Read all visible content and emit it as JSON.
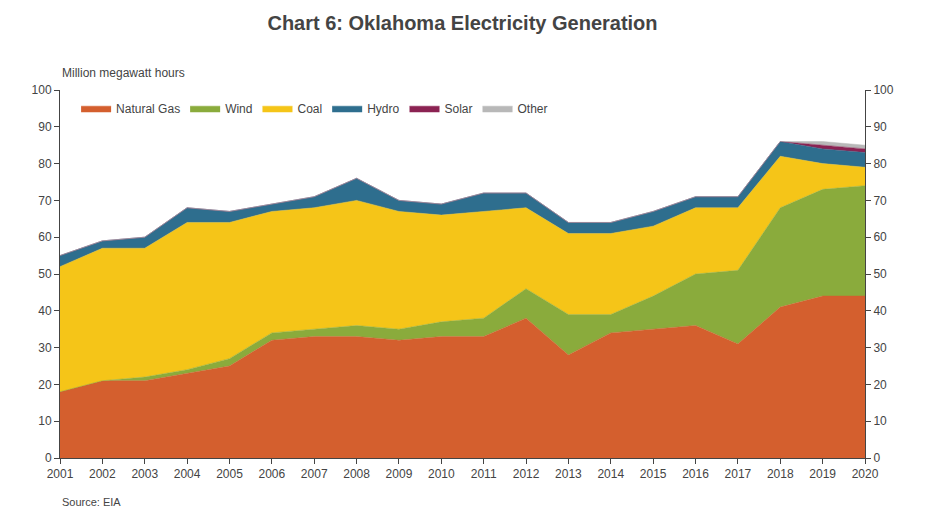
{
  "chart_data": {
    "type": "area",
    "stacked": true,
    "title": "Chart 6: Oklahoma Electricity Generation",
    "ylabel": "Million megawatt hours",
    "annotations": [
      "Source: EIA"
    ],
    "x": [
      2001,
      2002,
      2003,
      2004,
      2005,
      2006,
      2007,
      2008,
      2009,
      2010,
      2011,
      2012,
      2013,
      2014,
      2015,
      2016,
      2017,
      2018,
      2019,
      2020
    ],
    "series": [
      {
        "name": "Natural Gas",
        "color": "#d45f2e",
        "values": [
          18,
          21,
          21,
          23,
          25,
          32,
          33,
          33,
          32,
          33,
          33,
          38,
          28,
          34,
          35,
          36,
          31,
          41,
          44,
          44
        ]
      },
      {
        "name": "Wind",
        "color": "#8aab3c",
        "values": [
          0,
          0,
          1,
          1,
          2,
          2,
          2,
          3,
          3,
          4,
          5,
          8,
          11,
          5,
          9,
          14,
          20,
          27,
          29,
          30
        ]
      },
      {
        "name": "Coal",
        "color": "#f5c518",
        "values": [
          34,
          36,
          35,
          40,
          37,
          33,
          33,
          34,
          32,
          29,
          29,
          22,
          22,
          22,
          19,
          18,
          17,
          14,
          7,
          5
        ]
      },
      {
        "name": "Hydro",
        "color": "#2e6e8e",
        "values": [
          3,
          2,
          3,
          4,
          3,
          2,
          3,
          6,
          3,
          3,
          5,
          4,
          3,
          3,
          4,
          3,
          3,
          4,
          4,
          4
        ]
      },
      {
        "name": "Solar",
        "color": "#8b2252",
        "values": [
          0,
          0,
          0,
          0,
          0,
          0,
          0,
          0,
          0,
          0,
          0,
          0,
          0,
          0,
          0,
          0,
          0,
          0,
          1,
          1
        ]
      },
      {
        "name": "Other",
        "color": "#b8b8b8",
        "values": [
          0,
          0,
          0,
          0,
          0,
          0,
          0,
          0,
          0,
          0,
          0,
          0,
          0,
          0,
          0,
          0,
          0,
          0,
          1,
          1
        ]
      }
    ],
    "xlim": [
      2001,
      2020
    ],
    "xticks": [
      2001,
      2002,
      2003,
      2004,
      2005,
      2006,
      2007,
      2008,
      2009,
      2010,
      2011,
      2012,
      2013,
      2014,
      2015,
      2016,
      2017,
      2018,
      2019,
      2020
    ],
    "ylim": [
      0,
      100
    ],
    "yticks": [
      0,
      10,
      20,
      30,
      40,
      50,
      60,
      70,
      80,
      90,
      100
    ],
    "y2lim": [
      0,
      100
    ],
    "y2ticks": [
      0,
      10,
      20,
      30,
      40,
      50,
      60,
      70,
      80,
      90,
      100
    ],
    "grid": false,
    "legend": "upper left"
  }
}
